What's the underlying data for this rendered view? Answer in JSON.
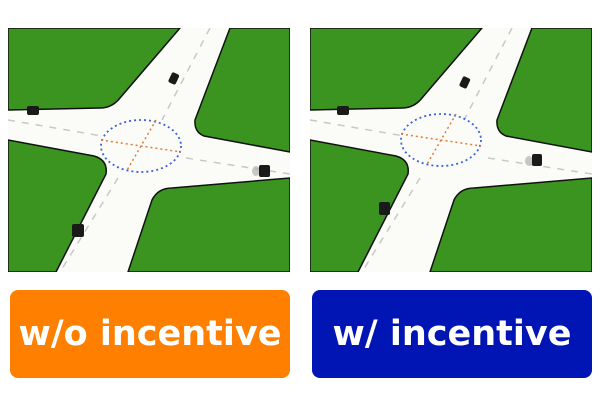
{
  "panels": [
    {
      "id": "left",
      "caption": "w/o incentive",
      "caption_color": "#ff7f00"
    },
    {
      "id": "right",
      "caption": "w/ incentive",
      "caption_color": "#0015b3"
    }
  ],
  "scene": {
    "grass_color": "#3a941f",
    "road_color": "#fbfbf8",
    "lane_marking_color": "#c8c8c8",
    "intersection_circle_color": "#3c64dc",
    "intersection_cross_color": "#e07b39",
    "vehicle_color": "#1a1a1a"
  }
}
